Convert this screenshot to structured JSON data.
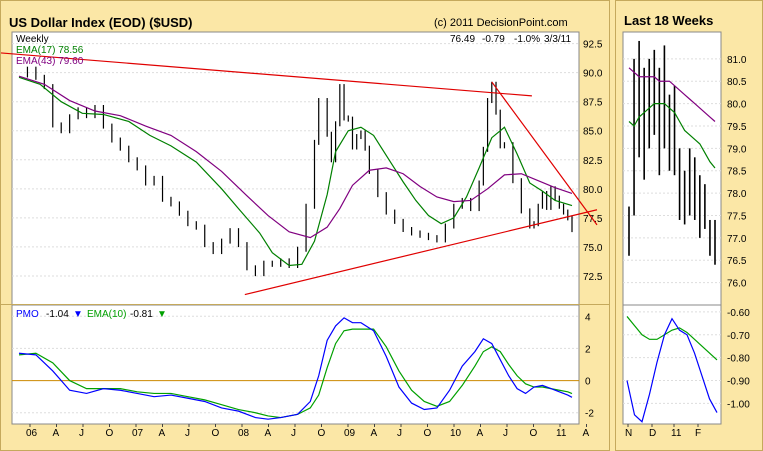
{
  "main": {
    "title": "US Dollar Index (EOD) ($USD)",
    "copyright": "(c) 2011 DecisionPoint.com",
    "period": "Weekly",
    "quote": {
      "last": "76.49",
      "change": "-0.79",
      "pct": "-1.0%",
      "date": "3/3/11"
    },
    "ema_labels": [
      "EMA(17) 78.56",
      "EMA(43) 79.60"
    ]
  },
  "pmo_panel": {
    "label": "PMO",
    "pmo_value": "-1.04",
    "ema_label": "EMA(10)",
    "ema_value": "-0.81",
    "pmo_arrow": "down",
    "ema_arrow": "down"
  },
  "side": {
    "title": "Last 18 Weeks"
  },
  "colors": {
    "background": "#fbe7a6",
    "plot": "#ffffff",
    "price_bars": "#000000",
    "ema17": "#008000",
    "ema43": "#800080",
    "trendline": "#e00000",
    "pmo": "#0000ff",
    "pmo_ema": "#00a000",
    "zero_line": "#cc8800"
  },
  "chart_data": [
    {
      "type": "line",
      "name": "price",
      "title": "US Dollar Index (EOD) ($USD)",
      "ylim": [
        70,
        93.5
      ],
      "yticks": [
        "72.5",
        "75.0",
        "77.5",
        "80.0",
        "82.5",
        "85.0",
        "87.5",
        "90.0",
        "92.5"
      ],
      "xticks": [
        "06",
        "A",
        "J",
        "O",
        "07",
        "A",
        "J",
        "O",
        "08",
        "A",
        "J",
        "O",
        "09",
        "A",
        "J",
        "O",
        "10",
        "A",
        "J",
        "O",
        "11",
        "A"
      ],
      "series": [
        {
          "name": "EMA(17)",
          "x": [
            0,
            10,
            20,
            30,
            40,
            52,
            62,
            72,
            84,
            96,
            104,
            114,
            120,
            128,
            134,
            140,
            146,
            150,
            156,
            162,
            168,
            176,
            182,
            188,
            194,
            200,
            206,
            212,
            218,
            224,
            230,
            236,
            242,
            248,
            254,
            262
          ],
          "values": [
            89.6,
            89.0,
            87.5,
            86.5,
            86.4,
            85.8,
            84.6,
            83.7,
            82.3,
            80.0,
            78.3,
            76.2,
            74.5,
            73.4,
            73.5,
            75.5,
            79.5,
            83.2,
            85.0,
            85.3,
            84.6,
            82.3,
            80.6,
            79.0,
            77.7,
            77.0,
            77.5,
            79.3,
            81.8,
            84.4,
            85.3,
            83.0,
            80.5,
            79.8,
            79.0,
            78.56
          ]
        },
        {
          "name": "EMA(43)",
          "x": [
            0,
            12,
            24,
            36,
            48,
            60,
            72,
            84,
            96,
            108,
            118,
            128,
            138,
            146,
            152,
            158,
            166,
            174,
            182,
            190,
            198,
            206,
            214,
            222,
            230,
            238,
            246,
            254,
            262
          ],
          "values": [
            89.7,
            89.0,
            87.6,
            86.7,
            86.3,
            85.4,
            84.6,
            83.2,
            81.5,
            79.4,
            77.7,
            76.3,
            75.8,
            76.7,
            78.3,
            80.3,
            81.6,
            81.8,
            81.3,
            80.2,
            79.3,
            78.9,
            79.0,
            80.0,
            81.2,
            81.3,
            80.7,
            80.1,
            79.6
          ]
        },
        {
          "name": "Weekly close",
          "x": [
            0,
            4,
            8,
            12,
            16,
            20,
            24,
            28,
            32,
            36,
            40,
            44,
            48,
            52,
            56,
            60,
            64,
            68,
            72,
            76,
            80,
            84,
            88,
            92,
            96,
            100,
            104,
            108,
            112,
            116,
            120,
            124,
            128,
            132,
            136,
            140,
            142,
            146,
            148,
            150,
            152,
            154,
            156,
            158,
            160,
            162,
            164,
            166,
            170,
            174,
            178,
            182,
            186,
            190,
            194,
            198,
            202,
            206,
            210,
            214,
            218,
            220,
            222,
            224,
            226,
            228,
            230,
            234,
            238,
            242,
            244,
            246,
            248,
            250,
            252,
            254,
            256,
            258,
            260,
            262
          ],
          "values": [
            89.8,
            90.3,
            89.6,
            88.8,
            85.5,
            85.0,
            86.2,
            86.8,
            86.3,
            87.0,
            85.4,
            84.2,
            83.5,
            82.5,
            81.8,
            80.5,
            80.9,
            79.1,
            78.7,
            77.9,
            77.0,
            76.7,
            75.2,
            74.6,
            75.5,
            76.4,
            75.2,
            73.2,
            72.7,
            73.6,
            73.5,
            73.8,
            73.4,
            74.8,
            78.5,
            84.0,
            87.6,
            84.7,
            82.5,
            85.6,
            88.8,
            86.1,
            86.0,
            83.6,
            84.5,
            84.8,
            83.5,
            81.5,
            79.5,
            78.0,
            77.2,
            76.5,
            76.2,
            76.0,
            75.8,
            75.6,
            76.8,
            78.5,
            79.0,
            78.3,
            80.5,
            83.4,
            87.6,
            89.0,
            86.6,
            83.7,
            83.8,
            80.7,
            78.1,
            76.8,
            77.0,
            78.5,
            79.6,
            78.4,
            80.0,
            79.2,
            78.5,
            78.0,
            77.5,
            76.49
          ]
        }
      ]
    },
    {
      "type": "line",
      "name": "pmo",
      "ylim": [
        -2.7,
        4.7
      ],
      "yticks": [
        "-2",
        "0",
        "2",
        "4"
      ],
      "series": [
        {
          "name": "PMO",
          "x": [
            0,
            8,
            16,
            24,
            32,
            40,
            48,
            56,
            64,
            72,
            80,
            88,
            96,
            104,
            112,
            118,
            124,
            132,
            138,
            142,
            146,
            150,
            154,
            158,
            162,
            168,
            174,
            180,
            186,
            192,
            198,
            204,
            210,
            216,
            220,
            224,
            228,
            232,
            236,
            240,
            244,
            248,
            252,
            256,
            260,
            262
          ],
          "values": [
            1.7,
            1.6,
            0.6,
            -0.6,
            -0.8,
            -0.5,
            -0.6,
            -0.8,
            -1.0,
            -0.9,
            -1.1,
            -1.3,
            -1.7,
            -1.9,
            -2.3,
            -2.4,
            -2.3,
            -2.1,
            -1.3,
            0.3,
            2.5,
            3.4,
            3.9,
            3.6,
            3.6,
            3.1,
            1.5,
            -0.4,
            -1.4,
            -1.8,
            -1.7,
            -0.6,
            0.9,
            1.8,
            2.6,
            2.3,
            1.3,
            0.3,
            -0.5,
            -0.8,
            -0.4,
            -0.3,
            -0.5,
            -0.7,
            -0.9,
            -1.04
          ]
        },
        {
          "name": "EMA(10)",
          "x": [
            0,
            8,
            16,
            24,
            32,
            40,
            48,
            56,
            64,
            72,
            80,
            88,
            96,
            104,
            112,
            118,
            124,
            132,
            138,
            142,
            146,
            150,
            154,
            158,
            162,
            168,
            174,
            180,
            186,
            192,
            198,
            204,
            210,
            216,
            220,
            224,
            228,
            232,
            236,
            240,
            244,
            248,
            252,
            256,
            260,
            262
          ],
          "values": [
            1.6,
            1.7,
            1.1,
            0.0,
            -0.5,
            -0.5,
            -0.5,
            -0.7,
            -0.8,
            -0.8,
            -1.0,
            -1.2,
            -1.5,
            -1.8,
            -2.0,
            -2.2,
            -2.3,
            -2.1,
            -1.7,
            -0.9,
            0.8,
            2.3,
            3.1,
            3.2,
            3.2,
            3.2,
            2.1,
            0.6,
            -0.6,
            -1.3,
            -1.6,
            -1.3,
            -0.3,
            0.9,
            1.8,
            2.1,
            1.8,
            1.0,
            0.3,
            -0.2,
            -0.4,
            -0.4,
            -0.5,
            -0.6,
            -0.7,
            -0.81
          ]
        }
      ]
    },
    {
      "type": "line",
      "name": "last-18-weeks",
      "title": "Last 18 Weeks",
      "ylim": [
        75.5,
        81.6
      ],
      "yticks": [
        "76.0",
        "76.5",
        "77.0",
        "77.5",
        "78.0",
        "78.5",
        "79.0",
        "79.5",
        "80.0",
        "80.5",
        "81.0"
      ],
      "xticks": [
        "N",
        "D",
        "11",
        "F"
      ],
      "bars": [
        {
          "high": 77.7,
          "low": 76.6
        },
        {
          "high": 81.0,
          "low": 77.5
        },
        {
          "high": 81.4,
          "low": 78.8
        },
        {
          "high": 80.8,
          "low": 78.3
        },
        {
          "high": 81.0,
          "low": 79.0
        },
        {
          "high": 81.2,
          "low": 79.3
        },
        {
          "high": 80.8,
          "low": 78.4
        },
        {
          "high": 81.3,
          "low": 79.0
        },
        {
          "high": 80.2,
          "low": 78.5
        },
        {
          "high": 80.4,
          "low": 78.4
        },
        {
          "high": 79.0,
          "low": 77.4
        },
        {
          "high": 78.5,
          "low": 77.3
        },
        {
          "high": 79.0,
          "low": 77.5
        },
        {
          "high": 78.8,
          "low": 77.4
        },
        {
          "high": 78.4,
          "low": 77.0
        },
        {
          "high": 78.2,
          "low": 77.2
        },
        {
          "high": 77.4,
          "low": 76.6
        },
        {
          "high": 77.4,
          "low": 76.4
        }
      ],
      "series": [
        {
          "name": "EMA(43)",
          "values": [
            80.8,
            80.7,
            80.6,
            80.6,
            80.6,
            80.6,
            80.5,
            80.5,
            80.5,
            80.4,
            80.3,
            80.2,
            80.1,
            80.0,
            79.9,
            79.8,
            79.7,
            79.6
          ]
        },
        {
          "name": "EMA(17)",
          "values": [
            79.6,
            79.5,
            79.7,
            79.8,
            79.9,
            80.0,
            80.0,
            80.0,
            79.9,
            79.8,
            79.6,
            79.4,
            79.3,
            79.2,
            79.1,
            78.9,
            78.7,
            78.56
          ]
        }
      ]
    },
    {
      "type": "line",
      "name": "last-18-weeks-pmo",
      "ylim": [
        -1.09,
        -0.57
      ],
      "yticks": [
        "-0.60",
        "-0.70",
        "-0.80",
        "-0.90",
        "-1.00"
      ],
      "series": [
        {
          "name": "PMO",
          "values": [
            -0.9,
            -1.05,
            -1.08,
            -0.96,
            -0.82,
            -0.7,
            -0.63,
            -0.68,
            -0.7,
            -0.78,
            -0.88,
            -0.98,
            -1.04
          ]
        },
        {
          "name": "EMA(10)",
          "values": [
            -0.62,
            -0.66,
            -0.7,
            -0.72,
            -0.72,
            -0.7,
            -0.68,
            -0.67,
            -0.69,
            -0.72,
            -0.75,
            -0.78,
            -0.81
          ]
        }
      ]
    }
  ]
}
